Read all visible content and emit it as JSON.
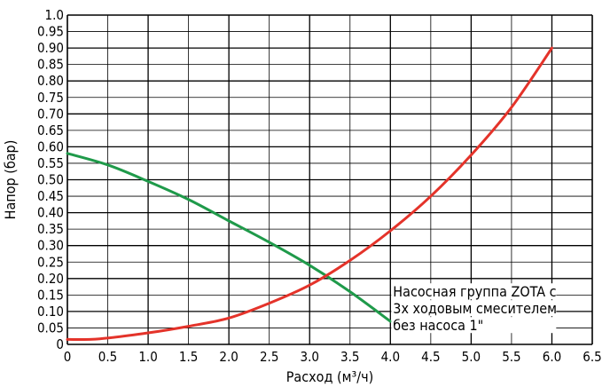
{
  "chart_data": {
    "type": "line",
    "xlabel": "Расход (м³/ч)",
    "ylabel": "Напор (бар)",
    "xlim": [
      0,
      6.5
    ],
    "ylim": [
      0,
      1.0
    ],
    "x_ticks": [
      "0",
      "0.5",
      "1.0",
      "1.5",
      "2.0",
      "2.5",
      "3.0",
      "3.5",
      "4.0",
      "4.5",
      "5.0",
      "5.5",
      "6.0",
      "6.5"
    ],
    "y_ticks": [
      "0",
      "0.05",
      "0.10",
      "0.15",
      "0.20",
      "0.25",
      "0.30",
      "0.35",
      "0.40",
      "0.45",
      "0.50",
      "0.55",
      "0.60",
      "0.65",
      "0.70",
      "0.75",
      "0.80",
      "0.85",
      "0.90",
      "0.95",
      "1.0"
    ],
    "grid": true,
    "annotation": [
      "Насосная группа ZOTA с",
      "3х ходовым смесителем",
      "без насоса 1\""
    ],
    "series": [
      {
        "color": "#1f9a4a",
        "x": [
          0,
          0.5,
          1.0,
          1.5,
          2.0,
          2.5,
          3.0,
          3.5,
          4.0
        ],
        "y": [
          0.58,
          0.545,
          0.495,
          0.44,
          0.375,
          0.31,
          0.24,
          0.16,
          0.07
        ]
      },
      {
        "color": "#e4332a",
        "x": [
          0,
          0.4,
          1.0,
          1.5,
          2.0,
          2.5,
          3.0,
          3.5,
          4.0,
          4.5,
          5.0,
          5.5,
          6.0
        ],
        "y": [
          0.015,
          0.017,
          0.035,
          0.055,
          0.08,
          0.125,
          0.18,
          0.255,
          0.345,
          0.45,
          0.575,
          0.72,
          0.9
        ]
      }
    ]
  }
}
